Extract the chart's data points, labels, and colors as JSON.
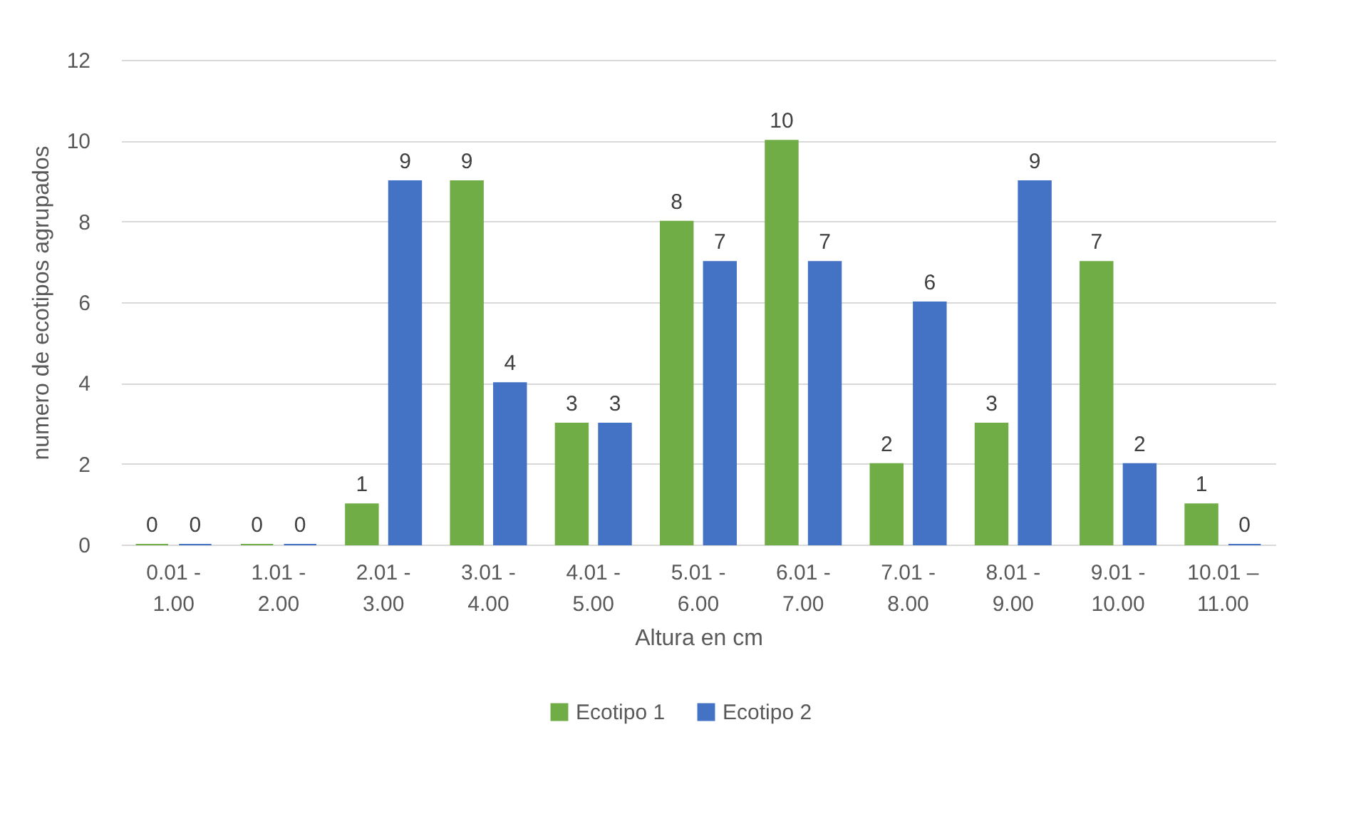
{
  "chart_data": {
    "type": "bar",
    "xlabel": "Altura en cm",
    "ylabel": "numero de ecotipos agrupados",
    "categories": [
      "0.01 - 1.00",
      "1.01 - 2.00",
      "2.01 - 3.00",
      "3.01 - 4.00",
      "4.01 - 5.00",
      "5.01 - 6.00",
      "6.01 - 7.00",
      "7.01 - 8.00",
      "8.01 - 9.00",
      "9.01 - 10.00",
      "10.01 – 11.00"
    ],
    "series": [
      {
        "name": "Ecotipo 1",
        "color": "#70ad47",
        "values": [
          0,
          0,
          1,
          9,
          3,
          8,
          10,
          2,
          3,
          7,
          1
        ]
      },
      {
        "name": "Ecotipo 2",
        "color": "#4472c4",
        "values": [
          0,
          0,
          9,
          4,
          3,
          7,
          7,
          6,
          9,
          2,
          0
        ]
      }
    ],
    "ylim": [
      0,
      12
    ],
    "yticks": [
      0,
      2,
      4,
      6,
      8,
      10,
      12
    ],
    "grid": "y",
    "legend": "bottom",
    "data_labels": true
  }
}
